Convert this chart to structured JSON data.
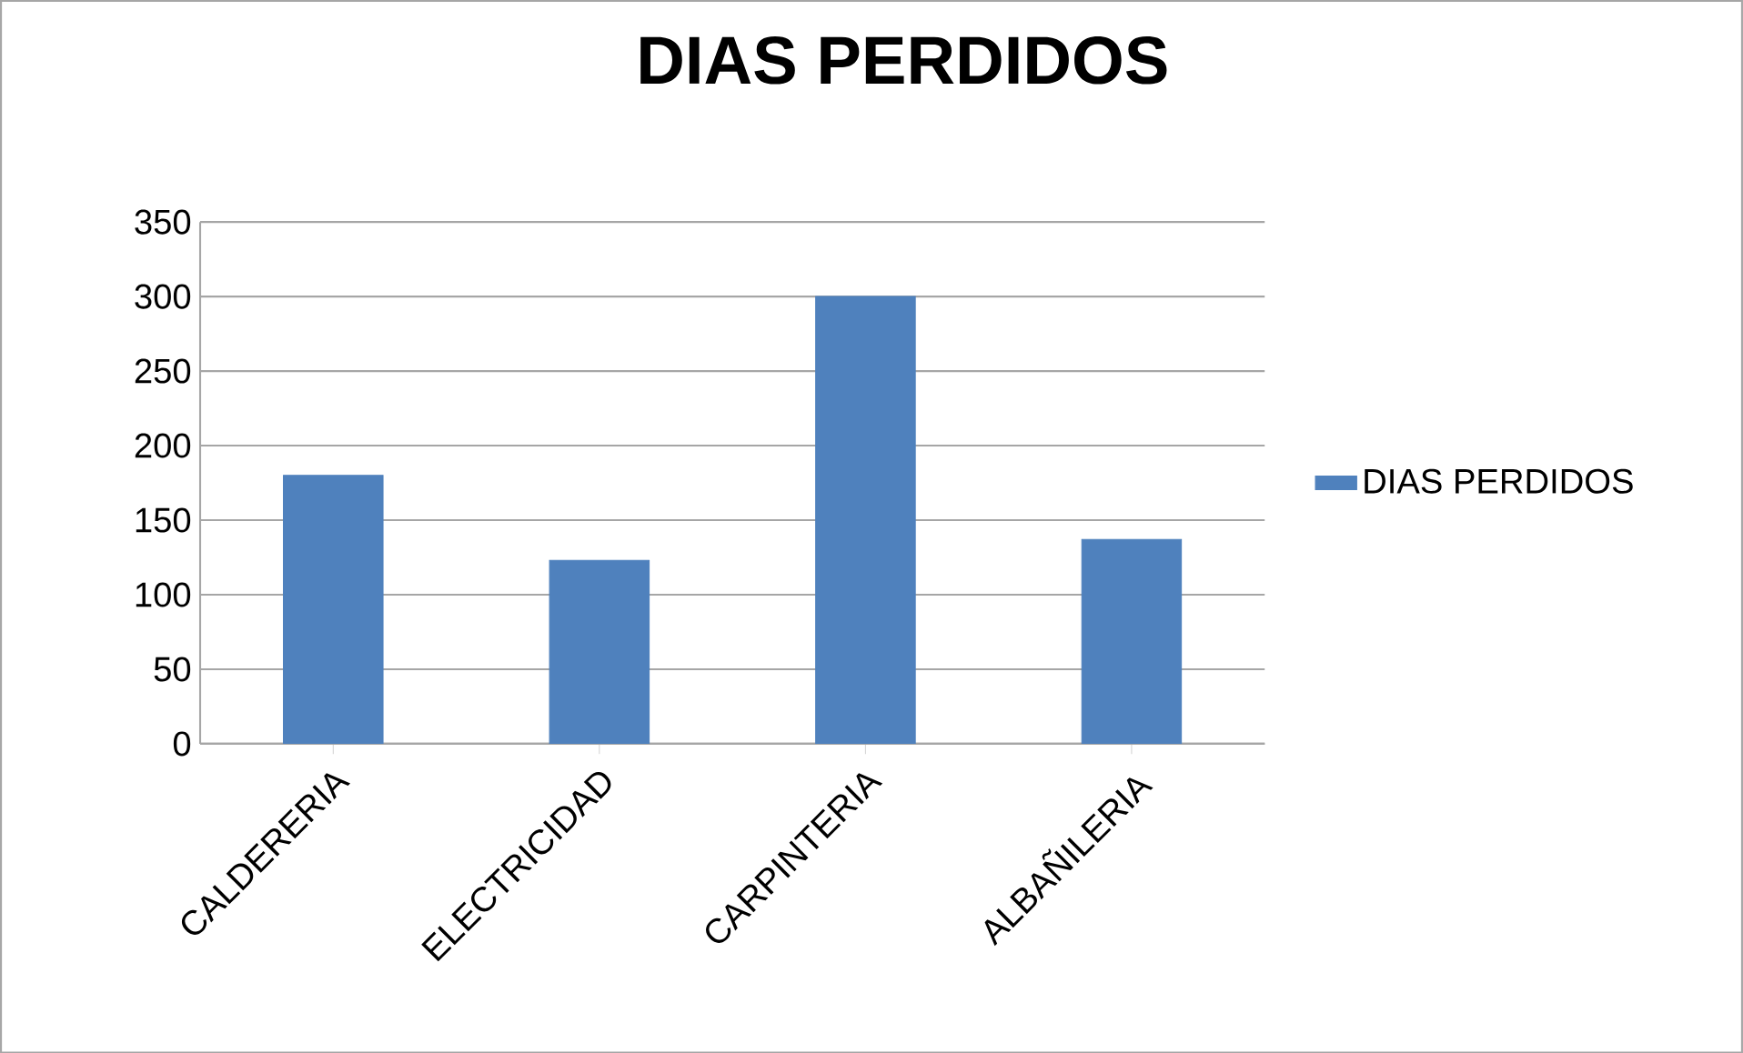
{
  "chart_data": {
    "type": "bar",
    "title": "DIAS PERDIDOS",
    "categories": [
      "CALDERERIA",
      "ELECTRICIDAD",
      "CARPINTERIA",
      "ALBAÑILERIA"
    ],
    "series": [
      {
        "name": "DIAS PERDIDOS",
        "color": "#4f81bd",
        "values": [
          180,
          123,
          300,
          137
        ]
      }
    ],
    "ylim": [
      0,
      350
    ],
    "yticks": [
      0,
      50,
      100,
      150,
      200,
      250,
      300,
      350
    ],
    "grid": "y",
    "legend": "right"
  }
}
